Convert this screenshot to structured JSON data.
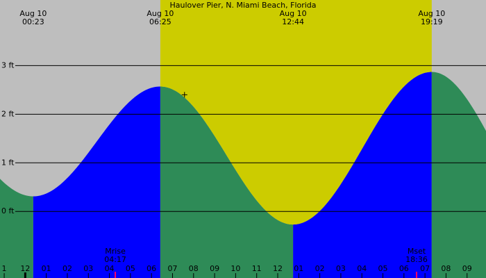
{
  "chart_data": {
    "type": "area",
    "title": "Haulover Pier, N. Miami Beach, Florida",
    "units": "ft",
    "x_range_hours": [
      -1.2,
      21.9
    ],
    "y_range_ft": [
      -1.37,
      4.35
    ],
    "y_ticks": [
      {
        "value": 0,
        "label": "0 ft"
      },
      {
        "value": 1,
        "label": "1 ft"
      },
      {
        "value": 2,
        "label": "2 ft"
      },
      {
        "value": 3,
        "label": "3 ft"
      }
    ],
    "hour_ticks": [
      "1",
      "12",
      "01",
      "02",
      "03",
      "04",
      "05",
      "06",
      "07",
      "08",
      "09",
      "10",
      "11",
      "12",
      "01",
      "02",
      "03",
      "04",
      "05",
      "06",
      "07",
      "08",
      "09"
    ],
    "tide_extremes": [
      {
        "hour": 0.38,
        "height": 0.31,
        "type": "low"
      },
      {
        "hour": 6.42,
        "height": 2.57,
        "type": "high"
      },
      {
        "hour": 12.73,
        "height": -0.27,
        "type": "low"
      },
      {
        "hour": 19.32,
        "height": 2.87,
        "type": "high"
      }
    ],
    "daylight": [
      {
        "date": "Aug 10",
        "time": "06:25",
        "hour": 6.42
      },
      {
        "date": "Aug 10",
        "time": "19:19",
        "hour": 19.32
      }
    ],
    "top_labels": [
      {
        "date": "Aug 10",
        "time": "00:23",
        "hour": 0.38
      },
      {
        "date": "Aug 10",
        "time": "06:25",
        "hour": 6.42
      },
      {
        "date": "Aug 10",
        "time": "12:44",
        "hour": 12.73
      },
      {
        "date": "Aug 10",
        "time": "19:19",
        "hour": 19.32
      }
    ],
    "moon": [
      {
        "label": "Mrise",
        "time": "04:17",
        "hour": 4.28
      },
      {
        "label": "Mset",
        "time": "18:36",
        "hour": 18.6
      }
    ],
    "current_marker": {
      "hour": 7.57,
      "height": 2.4
    },
    "now_marker_hour": 0,
    "colors": {
      "background": "#bebebe",
      "daylight": "#cccc00",
      "rising": "#0000ff",
      "falling": "#2e8b57",
      "moon_tick": "#ff0066"
    }
  }
}
